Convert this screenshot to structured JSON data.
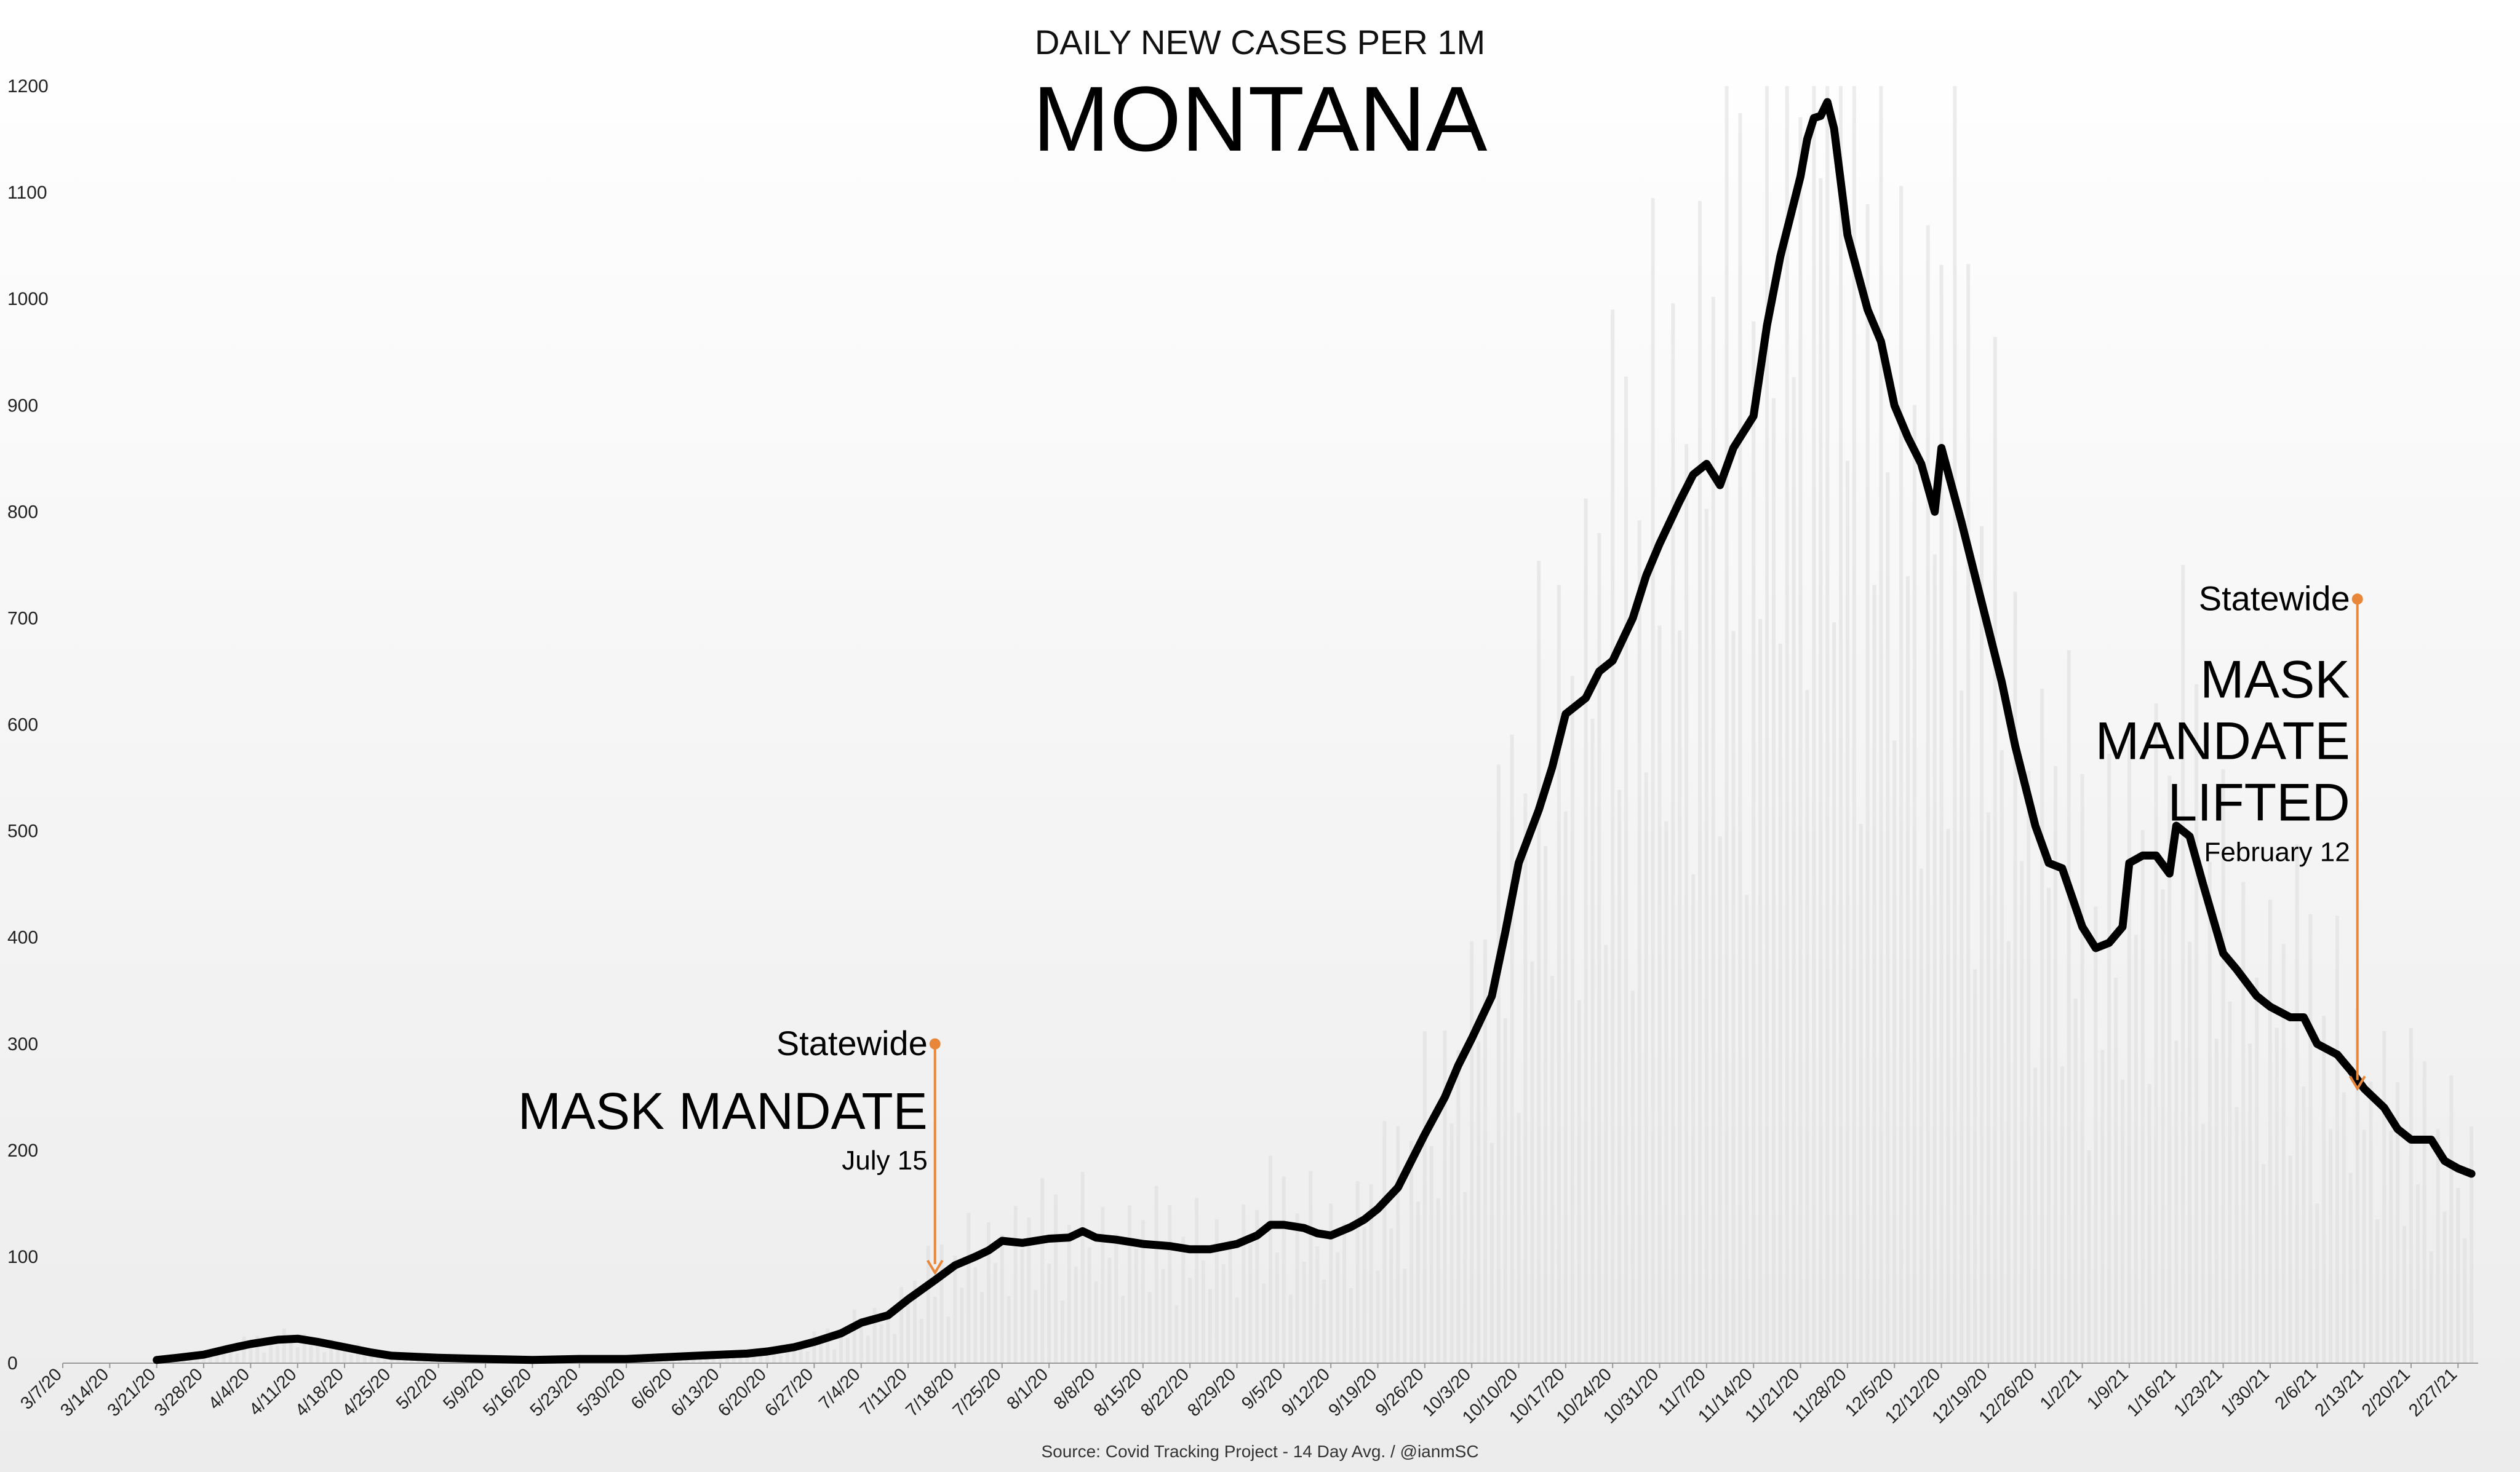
{
  "chart_data": {
    "type": "line",
    "supertitle": "DAILY NEW CASES PER 1M",
    "title": "MONTANA",
    "source": "Source: Covid Tracking Project - 14 Day Avg. / @ianmSC",
    "xlabel": "",
    "ylabel": "",
    "ylim": [
      0,
      1200
    ],
    "y_ticks": [
      "0",
      "100",
      "200",
      "300",
      "400",
      "500",
      "600",
      "700",
      "800",
      "900",
      "1000",
      "1100",
      "1200"
    ],
    "x_ticks": [
      "3/7/20",
      "3/14/20",
      "3/21/20",
      "3/28/20",
      "4/4/20",
      "4/11/20",
      "4/18/20",
      "4/25/20",
      "5/2/20",
      "5/9/20",
      "5/16/20",
      "5/23/20",
      "5/30/20",
      "6/6/20",
      "6/13/20",
      "6/20/20",
      "6/27/20",
      "7/4/20",
      "7/11/20",
      "7/18/20",
      "7/25/20",
      "8/1/20",
      "8/8/20",
      "8/15/20",
      "8/22/20",
      "8/29/20",
      "9/5/20",
      "9/12/20",
      "9/19/20",
      "9/26/20",
      "10/3/20",
      "10/10/20",
      "10/17/20",
      "10/24/20",
      "10/31/20",
      "11/7/20",
      "11/14/20",
      "11/21/20",
      "11/28/20",
      "12/5/20",
      "12/12/20",
      "12/19/20",
      "12/26/20",
      "1/2/21",
      "1/9/21",
      "1/16/21",
      "1/23/21",
      "1/30/21",
      "2/6/21",
      "2/13/21",
      "2/20/21",
      "2/27/21"
    ],
    "grid": false,
    "line_color": "#000000",
    "bar_color": "#dcdcdc",
    "annotation_color": "#e8873a",
    "series": [
      {
        "name": "14 Day Avg.",
        "x": [
          "3/21/20",
          "3/24/20",
          "3/28/20",
          "4/1/20",
          "4/4/20",
          "4/8/20",
          "4/11/20",
          "4/14/20",
          "4/18/20",
          "4/22/20",
          "4/25/20",
          "5/2/20",
          "5/9/20",
          "5/16/20",
          "5/23/20",
          "5/30/20",
          "6/6/20",
          "6/13/20",
          "6/17/20",
          "6/20/20",
          "6/24/20",
          "6/27/20",
          "7/1/20",
          "7/4/20",
          "7/8/20",
          "7/11/20",
          "7/15/20",
          "7/18/20",
          "7/21/20",
          "7/23/20",
          "7/25/20",
          "7/28/20",
          "8/1/20",
          "8/4/20",
          "8/6/20",
          "8/8/20",
          "8/11/20",
          "8/15/20",
          "8/19/20",
          "8/22/20",
          "8/25/20",
          "8/29/20",
          "9/1/20",
          "9/3/20",
          "9/5/20",
          "9/8/20",
          "9/10/20",
          "9/12/20",
          "9/15/20",
          "9/17/20",
          "9/19/20",
          "9/22/20",
          "9/24/20",
          "9/26/20",
          "9/29/20",
          "10/1/20",
          "10/3/20",
          "10/6/20",
          "10/8/20",
          "10/10/20",
          "10/13/20",
          "10/15/20",
          "10/17/20",
          "10/20/20",
          "10/22/20",
          "10/24/20",
          "10/27/20",
          "10/29/20",
          "10/31/20",
          "11/3/20",
          "11/5/20",
          "11/7/20",
          "11/9/20",
          "11/11/20",
          "11/14/20",
          "11/16/20",
          "11/18/20",
          "11/21/20",
          "11/22/20",
          "11/23/20",
          "11/24/20",
          "11/25/20",
          "11/26/20",
          "11/28/20",
          "12/1/20",
          "12/3/20",
          "12/5/20",
          "12/7/20",
          "12/9/20",
          "12/11/20",
          "12/12/20",
          "12/15/20",
          "12/17/20",
          "12/19/20",
          "12/21/20",
          "12/23/20",
          "12/26/20",
          "12/28/20",
          "12/30/20",
          "1/2/21",
          "1/4/21",
          "1/6/21",
          "1/8/21",
          "1/9/21",
          "1/11/21",
          "1/13/21",
          "1/15/21",
          "1/16/21",
          "1/18/21",
          "1/20/21",
          "1/23/21",
          "1/25/21",
          "1/28/21",
          "1/30/21",
          "2/2/21",
          "2/4/21",
          "2/6/21",
          "2/9/21",
          "2/11/21",
          "2/13/21",
          "2/16/21",
          "2/18/21",
          "2/20/21",
          "2/23/21",
          "2/25/21",
          "2/27/21",
          "3/1/21"
        ],
        "values": [
          3,
          5,
          8,
          14,
          18,
          22,
          23,
          20,
          15,
          10,
          7,
          5,
          4,
          3,
          4,
          4,
          6,
          8,
          9,
          11,
          15,
          20,
          28,
          38,
          45,
          60,
          78,
          92,
          100,
          106,
          115,
          113,
          117,
          118,
          124,
          118,
          116,
          112,
          110,
          107,
          107,
          112,
          120,
          130,
          130,
          127,
          122,
          120,
          128,
          135,
          145,
          165,
          190,
          215,
          250,
          280,
          305,
          345,
          405,
          470,
          520,
          560,
          610,
          625,
          650,
          660,
          700,
          740,
          770,
          810,
          835,
          845,
          825,
          860,
          890,
          975,
          1040,
          1115,
          1150,
          1170,
          1172,
          1185,
          1160,
          1060,
          990,
          960,
          900,
          870,
          845,
          800,
          860,
          790,
          740,
          690,
          640,
          580,
          505,
          470,
          465,
          410,
          390,
          395,
          410,
          470,
          477,
          477,
          460,
          505,
          495,
          450,
          385,
          370,
          345,
          335,
          325,
          325,
          300,
          290,
          275,
          258,
          240,
          220,
          210,
          210,
          190,
          183,
          178
        ]
      }
    ],
    "annotations": [
      {
        "date": "7/15/20",
        "label_small": "Statewide",
        "label_big": [
          "MASK MANDATE"
        ],
        "label_date": "July 15",
        "from_value": 300,
        "to_value": 85
      },
      {
        "date": "2/12/21",
        "label_small": "Statewide",
        "label_big": [
          "MASK",
          "MANDATE",
          "LIFTED"
        ],
        "label_date": "February 12",
        "from_value": 718,
        "to_value": 258
      }
    ]
  }
}
